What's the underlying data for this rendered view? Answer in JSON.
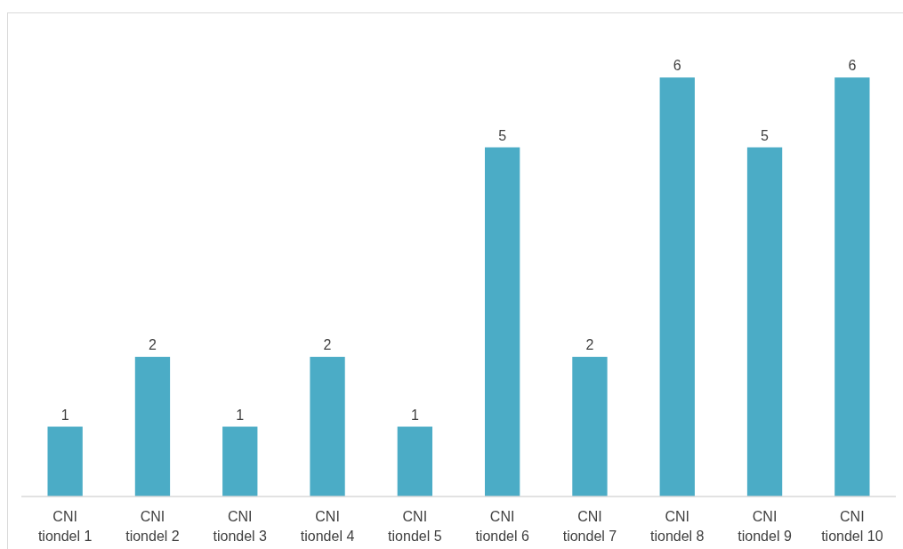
{
  "chart_data": {
    "type": "bar",
    "categories": [
      "CNI\ntiondel 1",
      "CNI\ntiondel 2",
      "CNI\ntiondel 3",
      "CNI\ntiondel 4",
      "CNI\ntiondel 5",
      "CNI\ntiondel 6",
      "CNI\ntiondel 7",
      "CNI\ntiondel 8",
      "CNI\ntiondel 9",
      "CNI\ntiondel 10"
    ],
    "values": [
      1,
      2,
      1,
      2,
      1,
      5,
      2,
      6,
      5,
      6
    ],
    "color": "#4bacc6",
    "data_labels": true
  }
}
